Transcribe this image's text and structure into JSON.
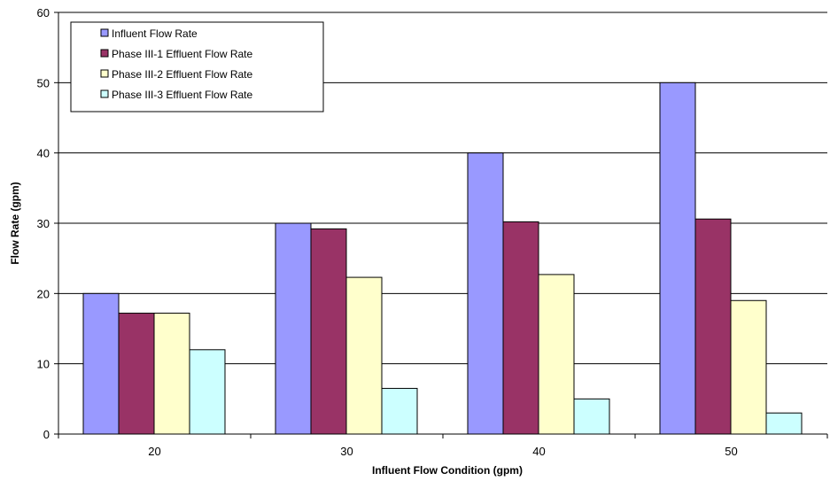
{
  "chart_data": {
    "type": "bar",
    "title": "",
    "xlabel": "Influent Flow Condition (gpm)",
    "ylabel": "Flow Rate (gpm)",
    "categories": [
      "20",
      "30",
      "40",
      "50"
    ],
    "ylim": [
      0,
      60
    ],
    "yticks": [
      0,
      10,
      20,
      30,
      40,
      50,
      60
    ],
    "grid": true,
    "legend_position": "top-left",
    "series": [
      {
        "name": "Influent Flow Rate",
        "color": "#9999ff",
        "values": [
          20,
          30,
          40,
          50
        ]
      },
      {
        "name": "Phase III-1 Effluent Flow Rate",
        "color": "#993366",
        "values": [
          17.2,
          29.2,
          30.2,
          30.6
        ]
      },
      {
        "name": "Phase III-2 Effluent Flow Rate",
        "color": "#ffffcc",
        "values": [
          17.2,
          22.3,
          22.7,
          19.0
        ]
      },
      {
        "name": "Phase III-3 Effluent Flow Rate",
        "color": "#ccffff",
        "values": [
          12.0,
          6.5,
          5.0,
          3.0
        ]
      }
    ]
  }
}
